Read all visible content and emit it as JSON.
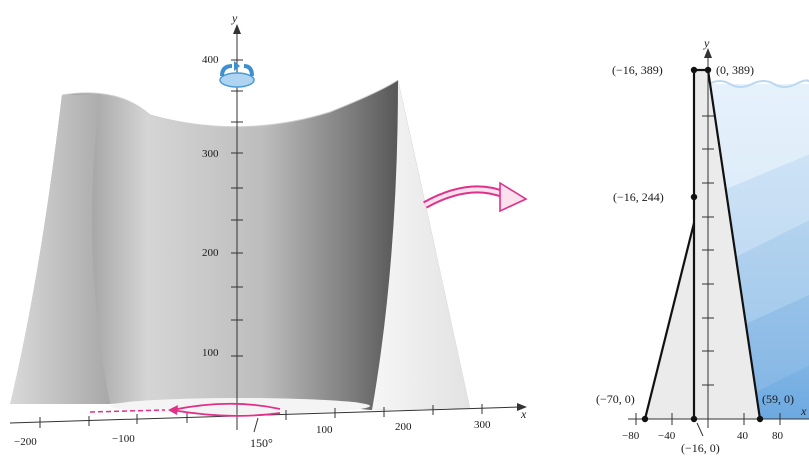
{
  "left_panel": {
    "x_axis_name": "x",
    "y_axis_name": "y",
    "y_ticks": [
      "400",
      "300",
      "200",
      "100"
    ],
    "x_ticks": [
      "−200",
      "−100",
      "100",
      "200",
      "300"
    ],
    "angle_label": "150°",
    "colors": {
      "surface_light": "#f2f2f2",
      "surface_dark": "#6f6f6f",
      "rotation_icon": "#58a8e0",
      "arc_arrow": "#e0308a"
    }
  },
  "right_panel": {
    "x_axis_name": "x",
    "y_axis_name": "y",
    "x_ticks": [
      "−80",
      "−40",
      "40",
      "80"
    ],
    "points": {
      "p1": "(−16, 389)",
      "p2": "(0, 389)",
      "p3": "(−16, 244)",
      "p4": "(−70, 0)",
      "p5": "(59, 0)",
      "p6": "(−16, 0)"
    },
    "colors": {
      "region_fill": "#ebebeb",
      "water_light": "#dbeaf7",
      "water_dark": "#7fb2e3",
      "outline": "#111111"
    }
  },
  "connector": {
    "color": "#e0308a"
  }
}
